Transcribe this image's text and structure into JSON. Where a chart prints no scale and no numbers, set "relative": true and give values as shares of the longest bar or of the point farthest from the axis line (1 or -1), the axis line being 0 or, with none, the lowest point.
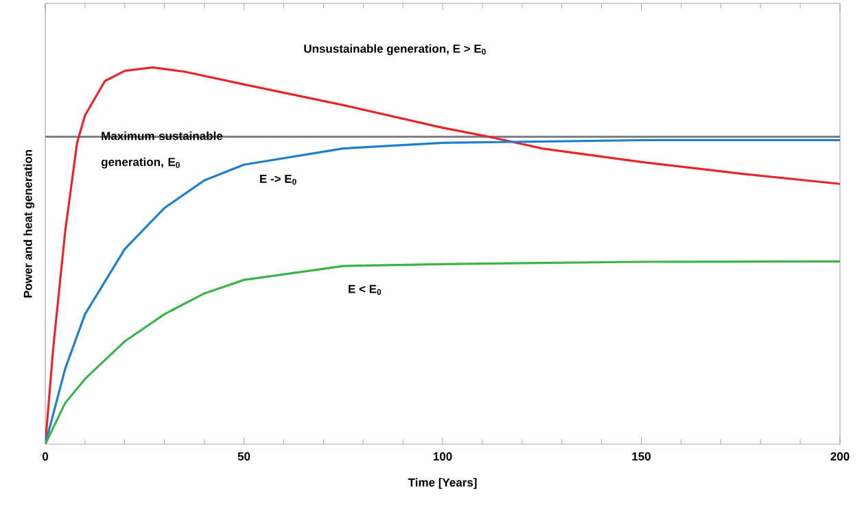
{
  "chart_data": {
    "type": "line",
    "relative": true,
    "xlabel": "Time [Years]",
    "ylabel": "Power and heat generation",
    "xlim": [
      0,
      200
    ],
    "xticks": [
      0,
      50,
      100,
      150,
      200
    ],
    "tick_labels": "x",
    "grid": false,
    "marker": "none",
    "line_style": "solid",
    "series": [
      {
        "color": "#e8262a",
        "x": [
          0,
          2,
          5,
          8,
          10,
          15,
          20,
          27,
          35,
          50,
          75,
          100,
          113,
          125,
          150,
          175,
          200
        ],
        "values": [
          0,
          0.255,
          0.564,
          0.8,
          0.873,
          0.964,
          0.991,
          1.0,
          0.989,
          0.955,
          0.9,
          0.84,
          0.813,
          0.785,
          0.749,
          0.718,
          0.691
        ]
      },
      {
        "color": "#1f7fcf",
        "x": [
          0,
          5,
          10,
          20,
          30,
          40,
          50,
          75,
          100,
          150,
          200
        ],
        "values": [
          0,
          0.2,
          0.345,
          0.518,
          0.627,
          0.7,
          0.742,
          0.785,
          0.8,
          0.807,
          0.807
        ]
      },
      {
        "color": "#3cb44a",
        "x": [
          0,
          5,
          10,
          20,
          30,
          40,
          50,
          75,
          100,
          150,
          200
        ],
        "values": [
          0,
          0.109,
          0.173,
          0.273,
          0.345,
          0.4,
          0.436,
          0.473,
          0.478,
          0.484,
          0.485
        ]
      }
    ],
    "ref_lines": [
      {
        "axis": "y",
        "value": 0.816,
        "label": "Maximum sustainable generation, E$_{0}$",
        "color": "#808080"
      }
    ],
    "annotations": [
      "Unsustainable generation, E > E$_{0}$",
      "E -> E$_{0}$",
      "E < E$_{0}$"
    ]
  }
}
